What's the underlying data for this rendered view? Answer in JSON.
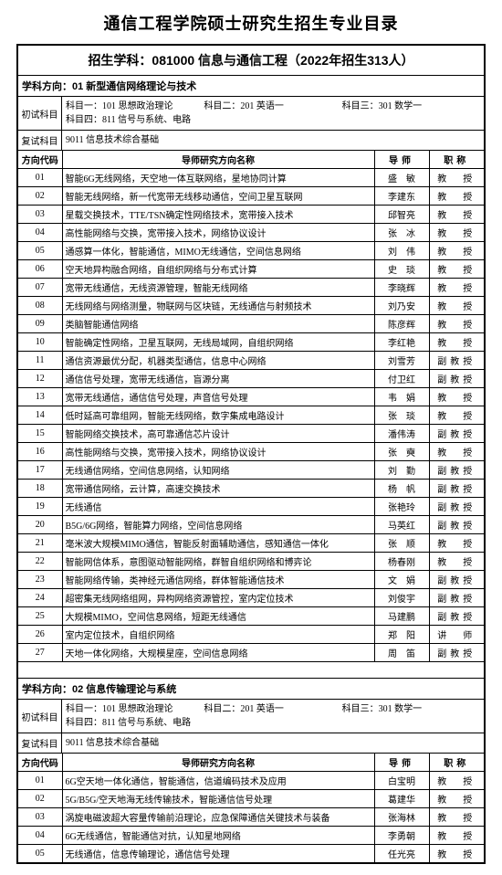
{
  "page_title": "通信工程学院硕士研究生招生专业目录",
  "subject_header": "招生学科：081000 信息与通信工程（2022年招生313人）",
  "directions": [
    {
      "dir_label": "学科方向：01 新型通信网络理论与技术",
      "prelim_label": "初试科目",
      "prelim_lines": [
        [
          "科目一：101 思想政治理论",
          "科目二：201 英语一",
          "科目三：301 数学一"
        ],
        [
          "科目四：811 信号与系统、电路",
          "",
          ""
        ]
      ],
      "retest_label": "复试科目",
      "retest_text": "9011 信息技术综合基础",
      "columns": {
        "code": "方向代码",
        "research": "导师研究方向名称",
        "advisor": "导师",
        "title": "职称"
      },
      "rows": [
        {
          "code": "01",
          "research": "智能6G无线网络，天空地一体互联网络，星地协同计算",
          "advisor": "盛　敏",
          "title": "教　授"
        },
        {
          "code": "02",
          "research": "智能无线网络，新一代宽带无线移动通信，空间卫星互联网",
          "advisor": "李建东",
          "title": "教　授"
        },
        {
          "code": "03",
          "research": "星载交换技术，TTE/TSN确定性网络技术，宽带接入技术",
          "advisor": "邱智亮",
          "title": "教　授"
        },
        {
          "code": "04",
          "research": "高性能网络与交换，宽带接入技术，网络协议设计",
          "advisor": "张　冰",
          "title": "教　授"
        },
        {
          "code": "05",
          "research": "通感算一体化，智能通信，MIMO无线通信，空间信息网络",
          "advisor": "刘　伟",
          "title": "教　授"
        },
        {
          "code": "06",
          "research": "空天地异构融合网络，自组织网络与分布式计算",
          "advisor": "史　琰",
          "title": "教　授"
        },
        {
          "code": "07",
          "research": "宽带无线通信，无线资源管理，智能无线网络",
          "advisor": "李晓辉",
          "title": "教　授"
        },
        {
          "code": "08",
          "research": "无线网络与网络测量，物联网与区块链，无线通信与射频技术",
          "advisor": "刘乃安",
          "title": "教　授"
        },
        {
          "code": "09",
          "research": "类脑智能通信网络",
          "advisor": "陈彦辉",
          "title": "教　授"
        },
        {
          "code": "10",
          "research": "智能确定性网络，卫星互联网，无线局域网，自组织网络",
          "advisor": "李红艳",
          "title": "教　授"
        },
        {
          "code": "11",
          "research": "通信资源最优分配，机器类型通信，信息中心网络",
          "advisor": "刘雪芳",
          "title": "副教授"
        },
        {
          "code": "12",
          "research": "通信信号处理，宽带无线通信，盲源分离",
          "advisor": "付卫红",
          "title": "副教授"
        },
        {
          "code": "13",
          "research": "宽带无线通信，通信信号处理，声音信号处理",
          "advisor": "韦　娟",
          "title": "教　授"
        },
        {
          "code": "14",
          "research": "低时延高可靠组网，智能无线网络，数字集成电路设计",
          "advisor": "张　琰",
          "title": "教　授"
        },
        {
          "code": "15",
          "research": "智能网络交换技术，高可靠通信芯片设计",
          "advisor": "潘伟涛",
          "title": "副教授"
        },
        {
          "code": "16",
          "research": "高性能网络与交换，宽带接入技术，网络协议设计",
          "advisor": "张　奭",
          "title": "教　授"
        },
        {
          "code": "17",
          "research": "无线通信网络，空间信息网络，认知网络",
          "advisor": "刘　勤",
          "title": "副教授"
        },
        {
          "code": "18",
          "research": "宽带通信网络，云计算，高速交换技术",
          "advisor": "杨　帆",
          "title": "副教授"
        },
        {
          "code": "19",
          "research": "无线通信",
          "advisor": "张艳玲",
          "title": "副教授"
        },
        {
          "code": "20",
          "research": "B5G/6G网络，智能算力网络，空间信息网络",
          "advisor": "马英红",
          "title": "副教授"
        },
        {
          "code": "21",
          "research": "毫米波大规模MIMO通信，智能反射面辅助通信，感知通信一体化",
          "advisor": "张　顺",
          "title": "教　授"
        },
        {
          "code": "22",
          "research": "智能网信体系，意图驱动智能网络，群智自组织网络和博弈论",
          "advisor": "杨春刚",
          "title": "教　授"
        },
        {
          "code": "23",
          "research": "智能网络传输，类神经元通信网络，群体智能通信技术",
          "advisor": "文　娟",
          "title": "副教授"
        },
        {
          "code": "24",
          "research": "超密集无线网络组网，异构网络资源管控，室内定位技术",
          "advisor": "刘俊宇",
          "title": "副教授"
        },
        {
          "code": "25",
          "research": "大规模MIMO，空间信息网络，短距无线通信",
          "advisor": "马建鹏",
          "title": "副教授"
        },
        {
          "code": "26",
          "research": "室内定位技术，自组织网络",
          "advisor": "郑　阳",
          "title": "讲　师"
        },
        {
          "code": "27",
          "research": "天地一体化网络，大规模星座，空间信息网络",
          "advisor": "周　笛",
          "title": "副教授"
        }
      ]
    },
    {
      "dir_label": "学科方向：02 信息传输理论与系统",
      "prelim_label": "初试科目",
      "prelim_lines": [
        [
          "科目一：101 思想政治理论",
          "科目二：201 英语一",
          "科目三：301 数学一"
        ],
        [
          "科目四：811 信号与系统、电路",
          "",
          ""
        ]
      ],
      "retest_label": "复试科目",
      "retest_text": "9011 信息技术综合基础",
      "columns": {
        "code": "方向代码",
        "research": "导师研究方向名称",
        "advisor": "导师",
        "title": "职称"
      },
      "rows": [
        {
          "code": "01",
          "research": "6G空天地一体化通信，智能通信，信道编码技术及应用",
          "advisor": "白宝明",
          "title": "教　授"
        },
        {
          "code": "02",
          "research": "5G/B5G/空天地海无线传输技术，智能通信信号处理",
          "advisor": "葛建华",
          "title": "教　授"
        },
        {
          "code": "03",
          "research": "涡旋电磁波超大容量传输前沿理论，应急保障通信关键技术与装备",
          "advisor": "张海林",
          "title": "教　授"
        },
        {
          "code": "04",
          "research": "6G无线通信，智能通信对抗，认知星地网络",
          "advisor": "李勇朝",
          "title": "教　授"
        },
        {
          "code": "05",
          "research": "无线通信，信息传输理论，通信信号处理",
          "advisor": "任光亮",
          "title": "教　授"
        }
      ]
    }
  ]
}
